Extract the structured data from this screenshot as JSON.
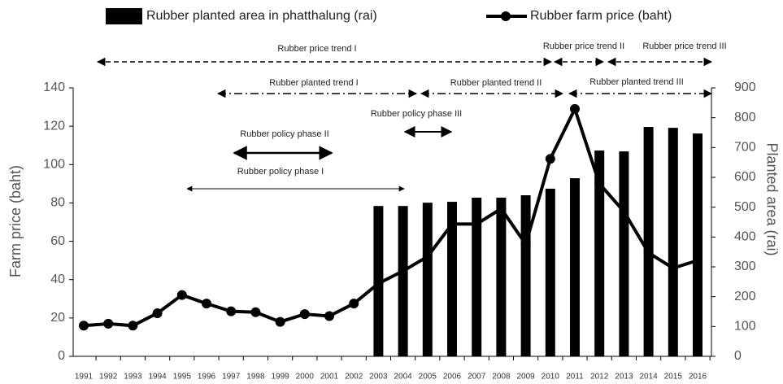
{
  "chart_data": {
    "type": "bar_line",
    "y_label": "Farm price (baht)",
    "y2_label": "Planted area (rai)",
    "categories": [
      "1991",
      "1992",
      "1993",
      "1994",
      "1995",
      "1996",
      "1997",
      "1998",
      "1999",
      "2000",
      "2001",
      "2002",
      "2003",
      "2004",
      "2005",
      "2006",
      "2007",
      "2008",
      "2009",
      "2010",
      "2011",
      "2012",
      "2013",
      "2014",
      "2015",
      "2016"
    ],
    "series": [
      {
        "name": "Rubber planted area in phatthalung  (rai)",
        "type": "bar",
        "axis": "y2",
        "color": "#000000",
        "values": [
          null,
          null,
          null,
          null,
          null,
          null,
          null,
          null,
          null,
          null,
          null,
          null,
          504,
          504,
          515,
          518,
          532,
          532,
          540,
          562,
          597,
          690,
          687,
          769,
          766,
          747
        ]
      },
      {
        "name": "Rubber farm price (baht)",
        "type": "line",
        "color": "#000000",
        "values": [
          16,
          17,
          16,
          22.5,
          32,
          27.5,
          23.5,
          23,
          18,
          22,
          21,
          27.5,
          38,
          44.5,
          52,
          69,
          69,
          77,
          58.5,
          103,
          129,
          90,
          75.5,
          54,
          46,
          50
        ]
      }
    ],
    "ylim": [
      0,
      140
    ],
    "yticks": [
      0,
      20,
      40,
      60,
      80,
      100,
      120,
      140
    ],
    "y2lim": [
      0,
      900
    ],
    "y2ticks": [
      0,
      100,
      200,
      300,
      400,
      500,
      600,
      700,
      800,
      900
    ],
    "annotations": [
      "Rubber price trend I",
      "Rubber price trend II",
      "Rubber price trend III",
      "Rubber planted trend I",
      "Rubber planted trend II",
      "Rubber planted trend III",
      "Rubber policy phase III",
      "Rubber policy phase II",
      "Rubber policy phase I"
    ]
  }
}
